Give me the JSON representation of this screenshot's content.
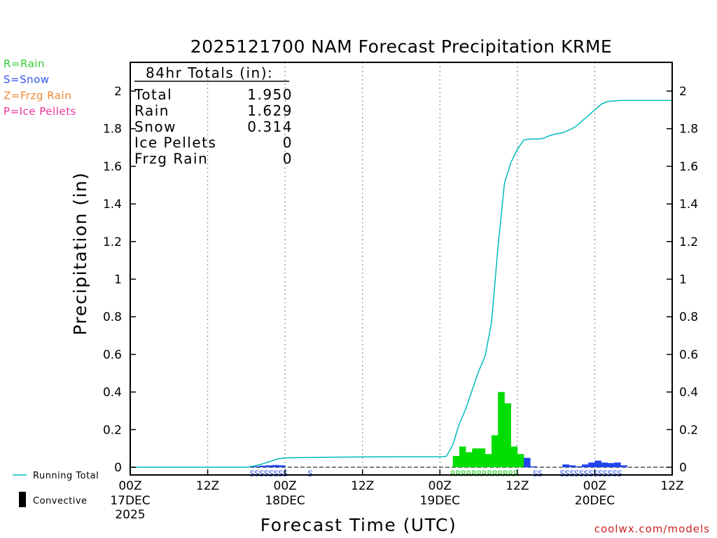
{
  "chart_data": {
    "type": "bar",
    "title": "2025121700 NAM Forecast Precipitation KRME",
    "xlabel": "Forecast Time (UTC)",
    "ylabel": "Precipitation (in)",
    "xlim": [
      0,
      84
    ],
    "ylim": [
      0,
      2.15
    ],
    "y_ticks": [
      0,
      0.2,
      0.4,
      0.6,
      0.8,
      1,
      1.2,
      1.4,
      1.6,
      1.8,
      2
    ],
    "y_tick_labels": [
      "0",
      "0.2",
      "0.4",
      "0.6",
      "0.8",
      "1",
      "1.2",
      "1.4",
      "1.6",
      "1.8",
      "2"
    ],
    "x_ticks": [
      {
        "hour": 0,
        "label": "00Z",
        "date": "17DEC",
        "year": "2025"
      },
      {
        "hour": 12,
        "label": "12Z",
        "date": "",
        "year": ""
      },
      {
        "hour": 24,
        "label": "00Z",
        "date": "18DEC",
        "year": ""
      },
      {
        "hour": 36,
        "label": "12Z",
        "date": "",
        "year": ""
      },
      {
        "hour": 48,
        "label": "00Z",
        "date": "19DEC",
        "year": ""
      },
      {
        "hour": 60,
        "label": "12Z",
        "date": "",
        "year": ""
      },
      {
        "hour": 72,
        "label": "00Z",
        "date": "20DEC",
        "year": ""
      },
      {
        "hour": 84,
        "label": "12Z",
        "date": "",
        "year": ""
      }
    ],
    "vgrid_hours": [
      12,
      24,
      36,
      48,
      60,
      72
    ],
    "legend": [
      {
        "label": "R=Rain",
        "color": "#33cc33"
      },
      {
        "label": "S=Snow",
        "color": "#3355ee"
      },
      {
        "label": "Z=Frzg Rain",
        "color": "#ee8833"
      },
      {
        "label": "P=Ice Pellets",
        "color": "#ee3399"
      }
    ],
    "totals": {
      "heading": "84hr Totals (in):",
      "rows": [
        {
          "label": "Total",
          "value": "1.950"
        },
        {
          "label": "Rain",
          "value": "1.629"
        },
        {
          "label": "Snow",
          "value": "0.314"
        },
        {
          "label": "Ice Pellets",
          "value": "0"
        },
        {
          "label": "Frzg Rain",
          "value": "0"
        }
      ]
    },
    "series": [
      {
        "name": "Rain",
        "color": "#00dd00",
        "bars": [
          {
            "hour": 50,
            "value": 0.06
          },
          {
            "hour": 51,
            "value": 0.11
          },
          {
            "hour": 52,
            "value": 0.08
          },
          {
            "hour": 53,
            "value": 0.1
          },
          {
            "hour": 54,
            "value": 0.1
          },
          {
            "hour": 55,
            "value": 0.07
          },
          {
            "hour": 56,
            "value": 0.17
          },
          {
            "hour": 57,
            "value": 0.4
          },
          {
            "hour": 58,
            "value": 0.34
          },
          {
            "hour": 59,
            "value": 0.11
          },
          {
            "hour": 60,
            "value": 0.07
          }
        ]
      },
      {
        "name": "Snow",
        "color": "#2244ee",
        "bars": [
          {
            "hour": 19,
            "value": 0.005
          },
          {
            "hour": 20,
            "value": 0.008
          },
          {
            "hour": 21,
            "value": 0.01
          },
          {
            "hour": 22,
            "value": 0.012
          },
          {
            "hour": 23,
            "value": 0.01
          },
          {
            "hour": 61,
            "value": 0.05
          },
          {
            "hour": 62,
            "value": 0.005
          },
          {
            "hour": 67,
            "value": 0.015
          },
          {
            "hour": 68,
            "value": 0.01
          },
          {
            "hour": 69,
            "value": 0.005
          },
          {
            "hour": 70,
            "value": 0.015
          },
          {
            "hour": 71,
            "value": 0.025
          },
          {
            "hour": 72,
            "value": 0.035
          },
          {
            "hour": 73,
            "value": 0.025
          },
          {
            "hour": 74,
            "value": 0.022
          },
          {
            "hour": 75,
            "value": 0.025
          },
          {
            "hour": 76,
            "value": 0.01
          }
        ]
      },
      {
        "name": "Running Total",
        "type": "line",
        "color": "#00bbbb",
        "x": [
          0,
          18,
          19,
          20,
          21,
          22,
          23,
          24,
          30,
          36,
          42,
          46,
          48,
          49,
          50,
          51,
          52,
          53,
          54,
          55,
          56,
          57,
          58,
          59,
          60,
          61,
          62,
          63,
          64,
          65,
          66,
          67,
          68,
          69,
          70,
          71,
          72,
          73,
          74,
          75,
          76,
          78,
          80,
          84
        ],
        "y": [
          0,
          0,
          0.005,
          0.013,
          0.023,
          0.035,
          0.045,
          0.05,
          0.053,
          0.055,
          0.056,
          0.056,
          0.056,
          0.058,
          0.12,
          0.23,
          0.31,
          0.41,
          0.51,
          0.59,
          0.77,
          1.17,
          1.51,
          1.62,
          1.69,
          1.74,
          1.745,
          1.745,
          1.748,
          1.763,
          1.773,
          1.778,
          1.792,
          1.81,
          1.84,
          1.87,
          1.9,
          1.93,
          1.945,
          1.948,
          1.95,
          1.95,
          1.95,
          1.95
        ]
      }
    ],
    "type_markers": [
      {
        "text": "SSSSSSSS",
        "start_hour": 18.5,
        "color": "#3355ee"
      },
      {
        "text": "S",
        "start_hour": 27.5,
        "color": "#3355ee"
      },
      {
        "text": "RRRRRRRRRRRRR",
        "start_hour": 49.6,
        "color": "#33cc33"
      },
      {
        "text": "SS",
        "start_hour": 62.4,
        "color": "#3355ee"
      },
      {
        "text": "SSSSSSSSSSSSS",
        "start_hour": 66.6,
        "color": "#3355ee"
      }
    ],
    "bottom_legend": [
      {
        "label": "Running Total",
        "symbol": "line",
        "color": "#00bbbb"
      },
      {
        "label": "Convective",
        "symbol": "bar",
        "color": "#000000"
      }
    ],
    "credit": "coolwx.com/models"
  }
}
